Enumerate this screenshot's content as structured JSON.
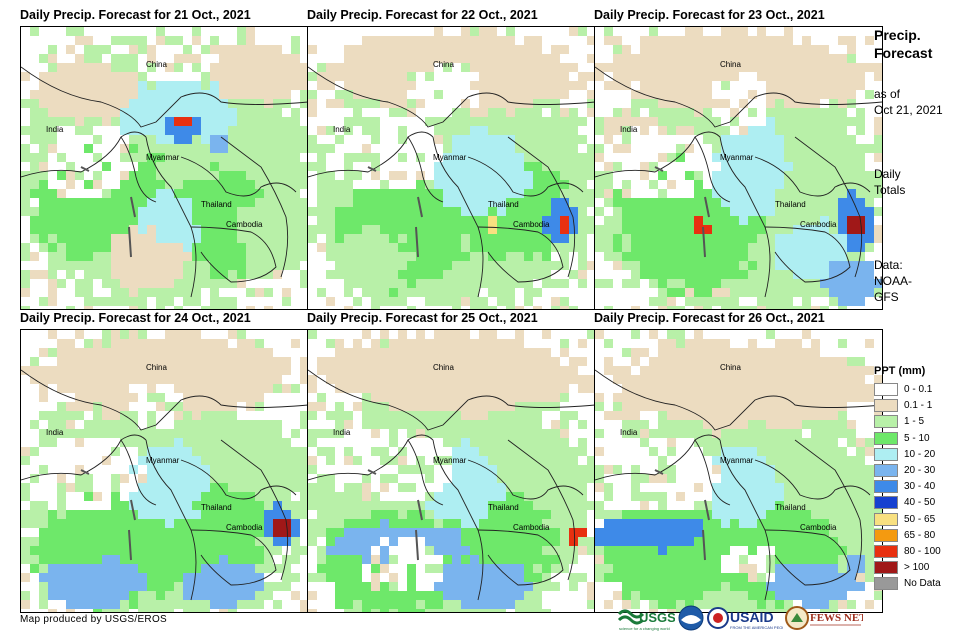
{
  "panels": [
    {
      "title": "Daily Precip. Forecast for 21 Oct., 2021"
    },
    {
      "title": "Daily Precip. Forecast for 22 Oct., 2021"
    },
    {
      "title": "Daily Precip. Forecast for 23 Oct., 2021"
    },
    {
      "title": "Daily Precip. Forecast for 24 Oct., 2021"
    },
    {
      "title": "Daily Precip. Forecast for 25 Oct., 2021"
    },
    {
      "title": "Daily Precip. Forecast for 26 Oct., 2021"
    }
  ],
  "map_labels": {
    "china": "China",
    "india": "India",
    "myanmar": "Myanmar",
    "thailand": "Thailand",
    "cambodia": "Cambodia"
  },
  "side": {
    "title_line1": "Precip.",
    "title_line2": "Forecast",
    "asof_line1": "as of",
    "asof_line2": "Oct 21, 2021",
    "totals_line1": "Daily",
    "totals_line2": "Totals",
    "data_line1": "Data:",
    "data_line2": "NOAA-",
    "data_line3": "GFS"
  },
  "legend": {
    "title": "PPT (mm)",
    "items": [
      {
        "label": "0 - 0.1",
        "color": "#ffffff"
      },
      {
        "label": "0.1 - 1",
        "color": "#ecdcc0"
      },
      {
        "label": "1 - 5",
        "color": "#b8f0a8"
      },
      {
        "label": "5 - 10",
        "color": "#6ee86a"
      },
      {
        "label": "10 - 20",
        "color": "#aeeef2"
      },
      {
        "label": "20 - 30",
        "color": "#7ab4ee"
      },
      {
        "label": "30 - 40",
        "color": "#3e8ae8"
      },
      {
        "label": "40 - 50",
        "color": "#1640d0"
      },
      {
        "label": "50 - 65",
        "color": "#f8e080"
      },
      {
        "label": "65 - 80",
        "color": "#f49a10"
      },
      {
        "label": "80 - 100",
        "color": "#e83010"
      },
      {
        "label": "> 100",
        "color": "#a01818"
      },
      {
        "label": "No Data",
        "color": "#999999"
      }
    ]
  },
  "credit": "Map produced by USGS/EROS",
  "logos": {
    "usgs": "USGS",
    "usaid": "USAID",
    "fewsnet": "FEWS NET"
  }
}
